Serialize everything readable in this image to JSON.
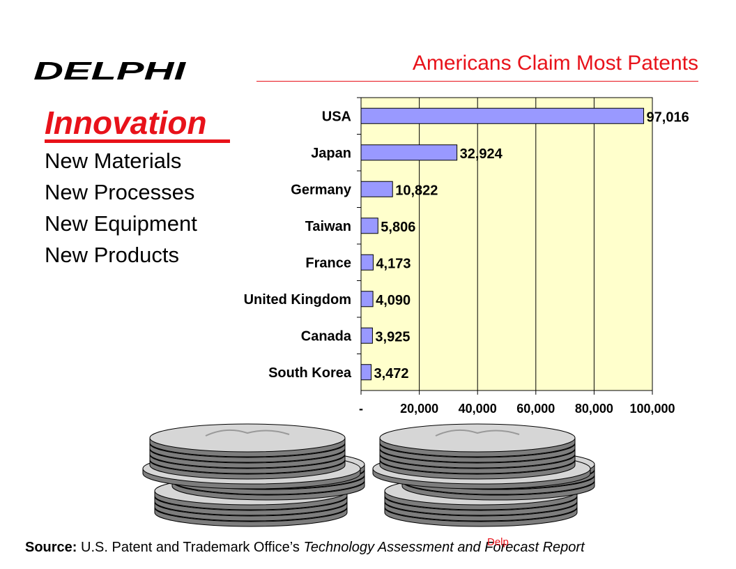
{
  "logo": {
    "text": "DELPHI"
  },
  "title": "Americans Claim Most Patents",
  "innovation": {
    "heading": "Innovation",
    "items": [
      "New Materials",
      "New Processes",
      "New Equipment",
      "New Products"
    ]
  },
  "footer": {
    "label": "Source:",
    "plain": "U.S. Patent and Trademark Office’s",
    "italic": "Technology Assessment and Forecast Report"
  },
  "stamp": "Delp",
  "colors": {
    "accent": "#e8121a",
    "bar": "#9999ff",
    "plot_bg": "#ffffcc"
  },
  "chart_data": {
    "type": "bar",
    "orientation": "horizontal",
    "categories": [
      "USA",
      "Japan",
      "Germany",
      "Taiwan",
      "France",
      "United Kingdom",
      "Canada",
      "South Korea"
    ],
    "values": [
      97016,
      32924,
      10822,
      5806,
      4173,
      4090,
      3925,
      3472
    ],
    "data_labels": [
      "97,016",
      "32,924",
      "10,822",
      "5,806",
      "4,173",
      "4,090",
      "3,925",
      "3,472"
    ],
    "xlim": [
      0,
      100000
    ],
    "x_ticks": [
      0,
      20000,
      40000,
      60000,
      80000,
      100000
    ],
    "x_tick_labels": [
      "-",
      "20,000",
      "40,000",
      "60,000",
      "80,000",
      "100,000"
    ],
    "grid": "vertical",
    "legend": "none"
  }
}
